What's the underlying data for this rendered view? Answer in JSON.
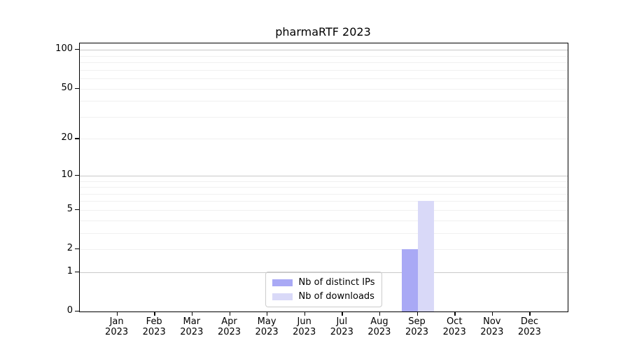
{
  "chart_data": {
    "type": "bar",
    "title": "pharmaRTF 2023",
    "categories": [
      "Jan 2023",
      "Feb 2023",
      "Mar 2023",
      "Apr 2023",
      "May 2023",
      "Jun 2023",
      "Jul 2023",
      "Aug 2023",
      "Sep 2023",
      "Oct 2023",
      "Nov 2023",
      "Dec 2023"
    ],
    "series": [
      {
        "name": "Nb of distinct IPs",
        "color": "#a9a9f5",
        "values": [
          0,
          0,
          0,
          0,
          0,
          0,
          0,
          0,
          2,
          0,
          0,
          0
        ]
      },
      {
        "name": "Nb of downloads",
        "color": "#d9d9f8",
        "values": [
          0,
          0,
          0,
          0,
          0,
          0,
          0,
          0,
          6,
          0,
          0,
          0
        ]
      }
    ],
    "xlabel": "",
    "ylabel": "",
    "yscale": "log1p",
    "ylim": [
      0,
      112
    ],
    "yticks": [
      0,
      1,
      2,
      5,
      10,
      20,
      50,
      100
    ],
    "minor_gridlines": [
      2,
      3,
      4,
      5,
      6,
      7,
      8,
      9,
      20,
      30,
      40,
      50,
      60,
      70,
      80,
      90
    ],
    "major_gridlines": [
      1,
      10,
      100
    ],
    "grid": true,
    "legend_position": "lower center"
  },
  "colors": {
    "background": "#ffffff",
    "axis": "#000000",
    "major_grid": "#c9c9c9",
    "minor_grid": "#f0f0f0",
    "legend_border": "#cccccc"
  }
}
